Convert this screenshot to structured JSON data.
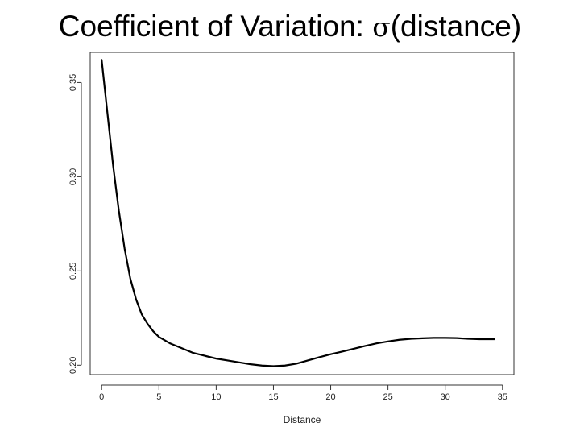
{
  "title": {
    "prefix": "Coefficient of Variation: ",
    "symbol": "σ",
    "suffix": "(distance)"
  },
  "chart_data": {
    "type": "line",
    "title": "Coefficient of Variation: σ(distance)",
    "xlabel": "Distance",
    "ylabel": "",
    "xlim": [
      -1,
      36
    ],
    "ylim": [
      0.195,
      0.366
    ],
    "xticks": [
      0,
      5,
      10,
      15,
      20,
      25,
      30,
      35
    ],
    "xtick_labels": [
      "0",
      "5",
      "10",
      "15",
      "20",
      "25",
      "30",
      "35"
    ],
    "yticks": [
      0.2,
      0.25,
      0.3,
      0.35
    ],
    "ytick_labels": [
      "0.20",
      "0.25",
      "0.30",
      "0.35"
    ],
    "grid": false,
    "series": [
      {
        "x": [
          0,
          0.5,
          1,
          1.5,
          2,
          2.5,
          3,
          3.5,
          4,
          4.5,
          5,
          6,
          7,
          8,
          9,
          10,
          11,
          12,
          13,
          14,
          15,
          16,
          17,
          18,
          19,
          20,
          21,
          22,
          23,
          24,
          25,
          26,
          27,
          28,
          29,
          30,
          31,
          32,
          33,
          34.3
        ],
        "y": [
          0.362,
          0.334,
          0.306,
          0.282,
          0.262,
          0.246,
          0.235,
          0.227,
          0.222,
          0.218,
          0.215,
          0.2115,
          0.209,
          0.2065,
          0.205,
          0.2035,
          0.2025,
          0.2015,
          0.2005,
          0.1998,
          0.1995,
          0.1998,
          0.2008,
          0.2025,
          0.2042,
          0.2058,
          0.2072,
          0.2087,
          0.2102,
          0.2116,
          0.2126,
          0.2135,
          0.214,
          0.2143,
          0.2145,
          0.2145,
          0.2144,
          0.214,
          0.2138,
          0.2138
        ],
        "color": "#000000"
      }
    ]
  }
}
